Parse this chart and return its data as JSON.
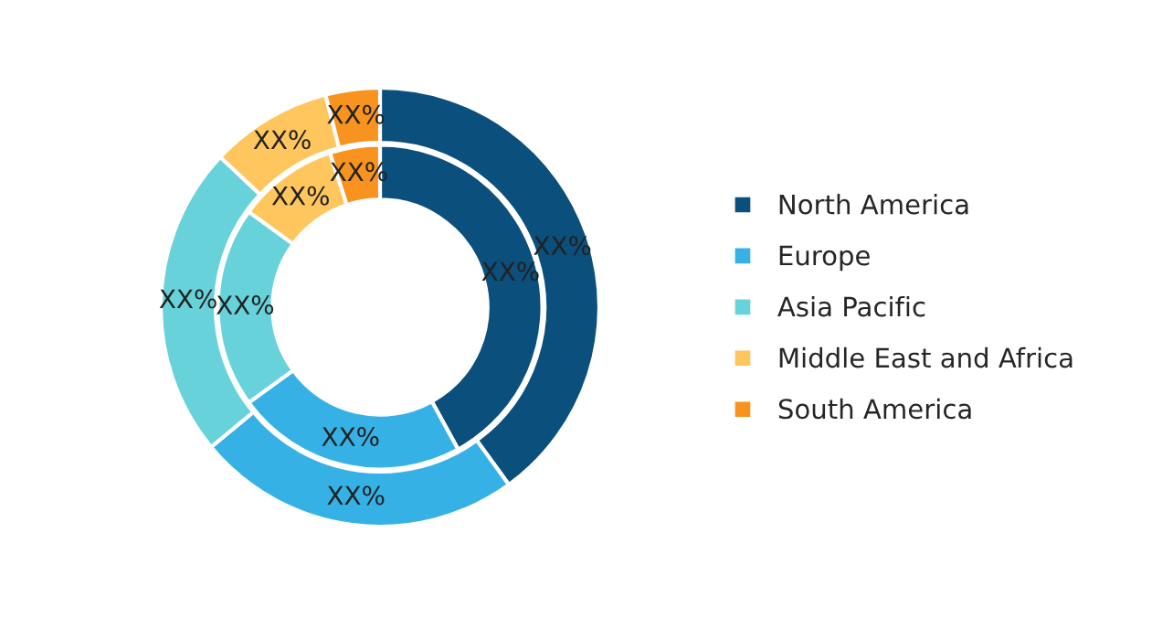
{
  "chart_data": {
    "type": "donut",
    "categories": [
      "North America",
      "Europe",
      "Asia Pacific",
      "Middle East and Africa",
      "South America"
    ],
    "colors": [
      "#0b4f7d",
      "#36b1e6",
      "#67d2da",
      "#fec65d",
      "#f7931e"
    ],
    "series": [
      {
        "values": [
          40,
          24,
          23,
          9,
          4
        ],
        "value_labels": [
          "XX%",
          "XX%",
          "XX%",
          "XX%",
          "XX%"
        ]
      },
      {
        "values": [
          42,
          23,
          20,
          10,
          5
        ],
        "value_labels": [
          "XX%",
          "XX%",
          "XX%",
          "XX%",
          "XX%"
        ]
      }
    ],
    "legend": "right"
  }
}
